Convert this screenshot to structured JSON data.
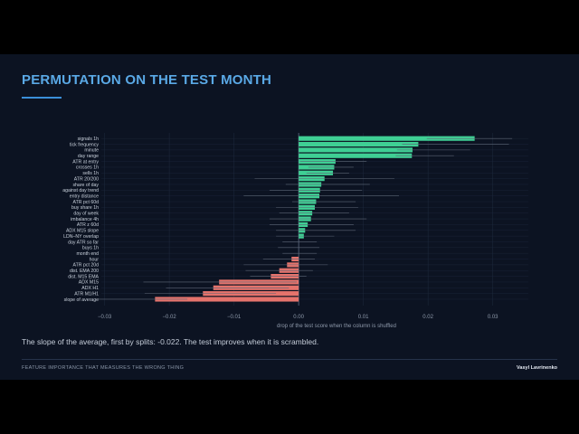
{
  "slide": {
    "title": "PERMUTATION ON THE TEST MONTH",
    "caption": "The slope of the average, first by splits: -0.022. The test improves when it is scrambled.",
    "footer_left": "FEATURE IMPORTANCE THAT MEASURES THE WRONG THING",
    "footer_right": "Vasyl Lavrinenko"
  },
  "colors": {
    "background": "#0c1322",
    "positive_bar": "#3fcf94",
    "negative_bar": "#e5736c",
    "title": "#5aa9e6"
  },
  "chart_data": {
    "type": "bar",
    "orientation": "horizontal",
    "xlabel": "drop of the test score when the column is shuffled",
    "ylabel": "",
    "xlim": [
      -0.03,
      0.03
    ],
    "xticks": [
      "−0.03",
      "−0.02",
      "−0.01",
      "0.00",
      "0.01",
      "0.02",
      "0.03"
    ],
    "xtick_values": [
      -0.03,
      -0.02,
      -0.01,
      0.0,
      0.01,
      0.02,
      0.03
    ],
    "grid": true,
    "categories": [
      "signals 1h",
      "tick frequency",
      "minute",
      "day range",
      "ATR at entry",
      "crosses 1h",
      "sells 1h",
      "ATR 20/200",
      "share of day",
      "against day trend",
      "entry distance",
      "ATR pct 60d",
      "buy share 1h",
      "day of week",
      "imbalance 4h",
      "ATR z 60d",
      "ADX M15 slope",
      "LDN–NY overlap",
      "day ATR so far",
      "buys 1h",
      "month end",
      "hour",
      "ATR pct 20d",
      "dist. EMA 200",
      "dist. M15 EMA",
      "ADX M15",
      "ADX H1",
      "ATR M1/H1",
      "slope of average"
    ],
    "values": [
      0.0272,
      0.0185,
      0.0176,
      0.0175,
      0.0057,
      0.0055,
      0.0053,
      0.004,
      0.0035,
      0.0033,
      0.0032,
      0.0027,
      0.0025,
      0.0021,
      0.0019,
      0.0014,
      0.001,
      0.0008,
      0.0,
      0.0,
      0.0,
      -0.0011,
      -0.0018,
      -0.003,
      -0.0043,
      -0.0123,
      -0.0132,
      -0.0148,
      -0.0222
    ],
    "error_low": [
      0.0198,
      0.016,
      0.0152,
      0.015,
      0.0002,
      0.0015,
      0.0012,
      -0.0068,
      -0.002,
      -0.0045,
      -0.0085,
      -0.001,
      -0.0035,
      -0.003,
      -0.0045,
      -0.0045,
      -0.0035,
      -0.0035,
      -0.0025,
      -0.0032,
      -0.0025,
      -0.0055,
      -0.0085,
      -0.0082,
      -0.0075,
      -0.024,
      -0.0205,
      -0.0238,
      -0.031
    ],
    "error_high": [
      0.033,
      0.0325,
      0.0265,
      0.024,
      0.0105,
      0.0085,
      0.0078,
      0.0148,
      0.011,
      0.0098,
      0.0155,
      0.0088,
      0.0092,
      0.0078,
      0.0105,
      0.0085,
      0.0088,
      0.0055,
      0.0028,
      0.0032,
      0.0028,
      0.0025,
      0.0045,
      0.0022,
      0.0012,
      -0.0003,
      -0.0015,
      -0.0035,
      -0.0172
    ]
  }
}
